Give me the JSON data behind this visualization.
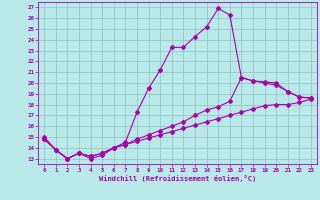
{
  "xlabel": "Windchill (Refroidissement éolien,°C)",
  "bg_color": "#b8e8e8",
  "grid_color": "#90c0c0",
  "line_color": "#aa00aa",
  "xlim": [
    -0.5,
    23.5
  ],
  "ylim": [
    12.5,
    27.5
  ],
  "xticks": [
    0,
    1,
    2,
    3,
    4,
    5,
    6,
    7,
    8,
    9,
    10,
    11,
    12,
    13,
    14,
    15,
    16,
    17,
    18,
    19,
    20,
    21,
    22,
    23
  ],
  "yticks": [
    13,
    14,
    15,
    16,
    17,
    18,
    19,
    20,
    21,
    22,
    23,
    24,
    25,
    26,
    27
  ],
  "line1_x": [
    0,
    1,
    2,
    3,
    4,
    5,
    6,
    7,
    8,
    9,
    10,
    11,
    12,
    13,
    14,
    15,
    16,
    17,
    18,
    19,
    20,
    21,
    22,
    23
  ],
  "line1_y": [
    15.0,
    13.8,
    13.0,
    13.5,
    13.0,
    13.3,
    14.0,
    14.5,
    17.3,
    19.5,
    21.2,
    23.3,
    23.3,
    24.3,
    25.2,
    26.9,
    26.3,
    20.5,
    20.2,
    20.1,
    20.0,
    19.2,
    18.7,
    18.6
  ],
  "line2_x": [
    0,
    1,
    2,
    3,
    4,
    5,
    6,
    7,
    8,
    9,
    10,
    11,
    12,
    13,
    14,
    15,
    16,
    17,
    18,
    19,
    20,
    21,
    22,
    23
  ],
  "line2_y": [
    14.8,
    13.8,
    13.0,
    13.5,
    13.2,
    13.5,
    14.0,
    14.3,
    14.8,
    15.2,
    15.6,
    16.0,
    16.4,
    17.0,
    17.5,
    17.8,
    18.3,
    20.5,
    20.2,
    20.0,
    19.8,
    19.2,
    18.7,
    18.6
  ],
  "line3_x": [
    0,
    1,
    2,
    3,
    4,
    5,
    6,
    7,
    8,
    9,
    10,
    11,
    12,
    13,
    14,
    15,
    16,
    17,
    18,
    19,
    20,
    21,
    22,
    23
  ],
  "line3_y": [
    14.8,
    13.8,
    13.0,
    13.5,
    13.2,
    13.5,
    14.0,
    14.3,
    14.6,
    14.9,
    15.2,
    15.5,
    15.8,
    16.1,
    16.4,
    16.7,
    17.0,
    17.3,
    17.6,
    17.9,
    18.0,
    18.0,
    18.2,
    18.5
  ]
}
